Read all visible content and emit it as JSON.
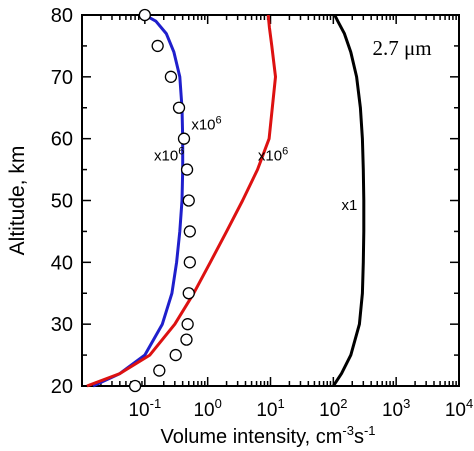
{
  "chart_data": {
    "type": "line",
    "xscale": "log",
    "xlim": [
      0.01,
      10000
    ],
    "ylim": [
      20,
      80
    ],
    "xlabel": "Volume  intensity,  cm",
    "xlabel_unit_sup1": "-3",
    "xlabel_unit_mid": "s",
    "xlabel_unit_sup2": "-1",
    "ylabel": "Altitude,  km",
    "annotation": "2.7 μm",
    "x_ticks": [
      {
        "value": 0.1,
        "base": "10",
        "exp": "-1"
      },
      {
        "value": 1,
        "base": "10",
        "exp": "0"
      },
      {
        "value": 10,
        "base": "10",
        "exp": "1"
      },
      {
        "value": 100,
        "base": "10",
        "exp": "2"
      },
      {
        "value": 1000,
        "base": "10",
        "exp": "3"
      },
      {
        "value": 10000,
        "base": "10",
        "exp": "4"
      }
    ],
    "y_ticks": [
      20,
      30,
      40,
      50,
      60,
      70,
      80
    ],
    "series": [
      {
        "label": "x10",
        "label_exp": "6",
        "label_at": [
          0.14,
          56.5
        ],
        "color": "#1f1fcc",
        "x": [
          0.015,
          0.04,
          0.1,
          0.19,
          0.27,
          0.32,
          0.36,
          0.39,
          0.4,
          0.4,
          0.39,
          0.36,
          0.29,
          0.22,
          0.15,
          0.1
        ],
        "y": [
          20,
          22,
          25,
          30,
          35,
          40,
          45,
          50,
          55,
          60,
          65,
          70,
          74,
          77,
          79,
          80
        ]
      },
      {
        "label": "x10",
        "label_exp": "6",
        "label_at": [
          6.3,
          56.5
        ],
        "color": "#dd1111",
        "x": [
          0.012,
          0.04,
          0.12,
          0.3,
          0.6,
          1.1,
          2.0,
          3.6,
          6.2,
          9.5,
          12,
          10.5,
          9.6,
          9.2
        ],
        "y": [
          20,
          22,
          25,
          30,
          35,
          40,
          45,
          50,
          55,
          60,
          70,
          75,
          78,
          80
        ]
      },
      {
        "label": "x1",
        "label_exp": "",
        "label_at": [
          135,
          48.5
        ],
        "color": "#000000",
        "x": [
          100,
          135,
          190,
          260,
          290,
          300,
          305,
          305,
          300,
          290,
          270,
          235,
          190,
          150,
          118,
          105
        ],
        "y": [
          20,
          22,
          25,
          30,
          35,
          40,
          45,
          50,
          55,
          60,
          65,
          70,
          74,
          77,
          79,
          80
        ]
      },
      {
        "label": "x10",
        "label_exp": "6",
        "label_at": [
          0.55,
          61.5
        ],
        "color": "#000000",
        "marker": "circle",
        "x": [
          0.1,
          0.16,
          0.26,
          0.35,
          0.42,
          0.47,
          0.5,
          0.52,
          0.52,
          0.5,
          0.48,
          0.46,
          0.31,
          0.17,
          0.07
        ],
        "y": [
          80,
          75,
          70,
          65,
          60,
          55,
          50,
          45,
          40,
          35,
          30,
          27.5,
          25,
          22.5,
          20
        ]
      }
    ]
  }
}
